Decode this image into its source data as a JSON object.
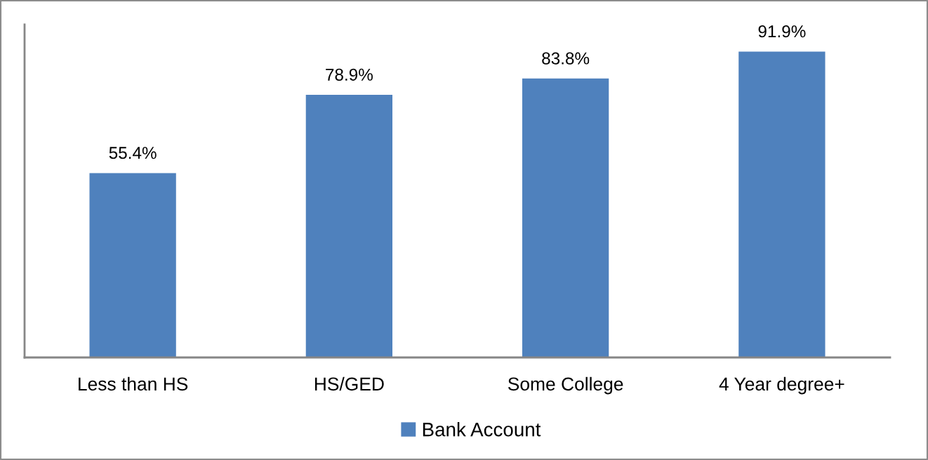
{
  "chart_data": {
    "type": "bar",
    "categories": [
      "Less than HS",
      "HS/GED",
      "Some College",
      "4 Year degree+"
    ],
    "series": [
      {
        "name": "Bank Account",
        "color": "#4f81bd",
        "values": [
          55.4,
          78.9,
          83.8,
          91.9
        ],
        "value_labels": [
          "55.4%",
          "78.9%",
          "83.8%",
          "91.9%"
        ]
      }
    ],
    "ylim": [
      0,
      100
    ],
    "tick_labels": "x",
    "legend": "bottom"
  }
}
